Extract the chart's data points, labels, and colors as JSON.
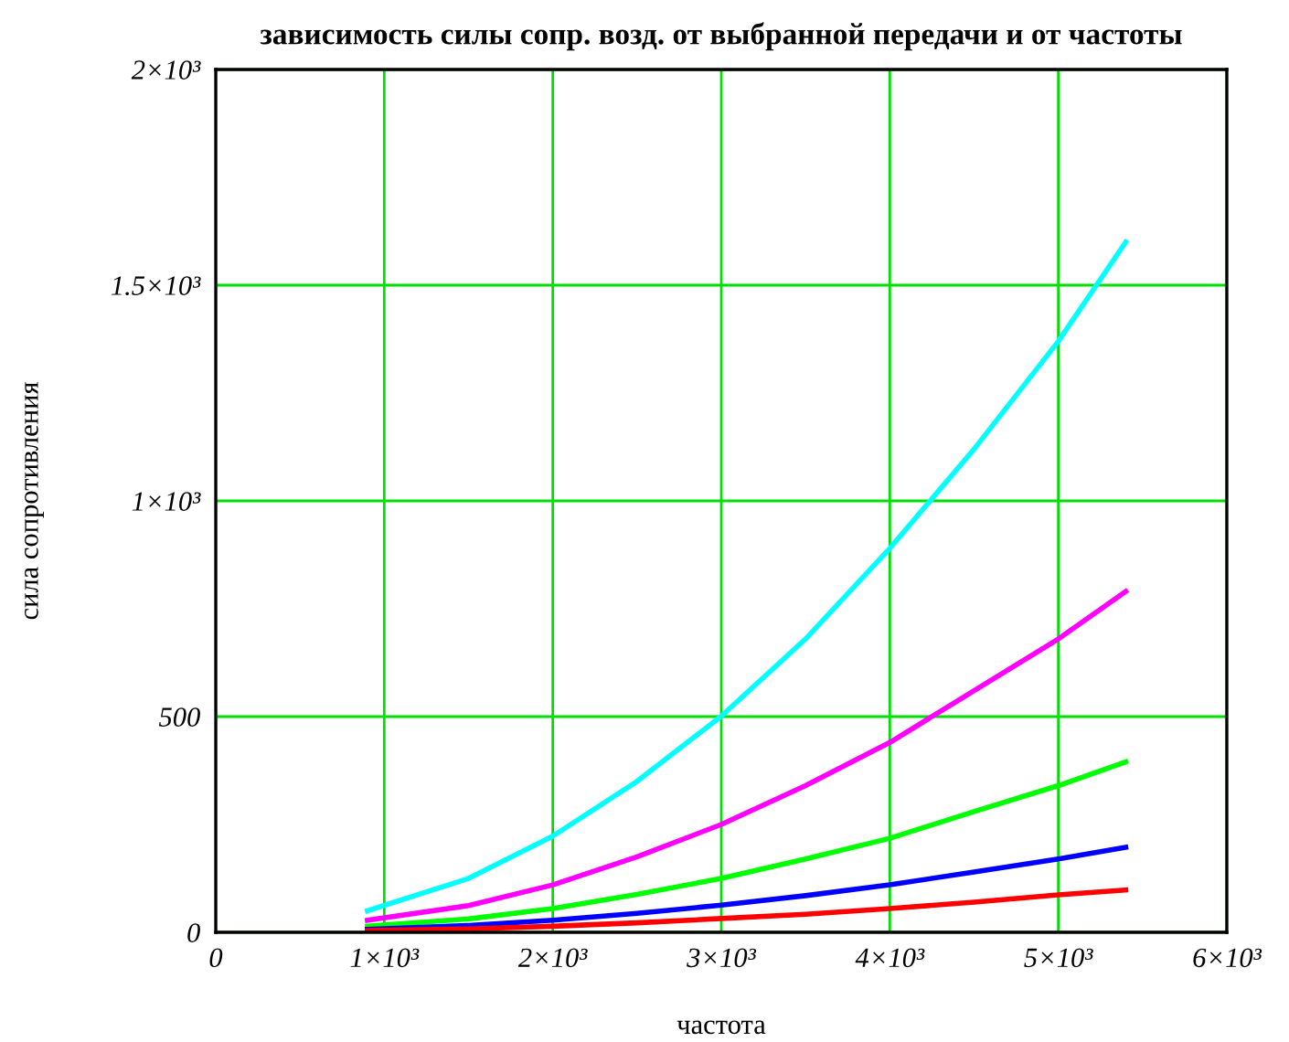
{
  "chart_data": {
    "type": "line",
    "title": "зависимость силы сопр. возд. от выбранной передачи и от частоты",
    "xlabel": "частота",
    "ylabel": "сила сопротивления",
    "x": [
      900,
      1500,
      2000,
      2500,
      3000,
      3500,
      4000,
      4500,
      5000,
      5400
    ],
    "series": [
      {
        "color": "#00ffff",
        "values": [
          50,
          125,
          223,
          350,
          501,
          680,
          890,
          1120,
          1370,
          1600
        ]
      },
      {
        "color": "#ff00ff",
        "values": [
          28,
          62,
          110,
          175,
          250,
          340,
          440,
          560,
          680,
          790
        ]
      },
      {
        "color": "#00ff00",
        "values": [
          14,
          31,
          55,
          88,
          125,
          170,
          218,
          280,
          340,
          395
        ]
      },
      {
        "color": "#0000ff",
        "values": [
          7,
          16,
          28,
          44,
          63,
          85,
          110,
          140,
          170,
          197
        ]
      },
      {
        "color": "#ff0000",
        "values": [
          4,
          8,
          14,
          22,
          32,
          42,
          55,
          70,
          87,
          98
        ]
      }
    ],
    "xlim": [
      0,
      6000
    ],
    "ylim": [
      0,
      2000
    ],
    "xticks": [
      0,
      {
        "value": 1000,
        "label": "1×10³"
      },
      {
        "value": 2000,
        "label": "2×10³"
      },
      {
        "value": 3000,
        "label": "3×10³"
      },
      {
        "value": 4000,
        "label": "4×10³"
      },
      {
        "value": 5000,
        "label": "5×10³"
      },
      {
        "value": 6000,
        "label": "6×10³"
      }
    ],
    "yticks": [
      0,
      500,
      {
        "value": 1000,
        "label": "1×10³"
      },
      {
        "value": 1500,
        "label": "1.5×10³"
      },
      {
        "value": 2000,
        "label": "2×10³"
      }
    ],
    "grid": true,
    "marker": "none",
    "line_style": "solid"
  }
}
